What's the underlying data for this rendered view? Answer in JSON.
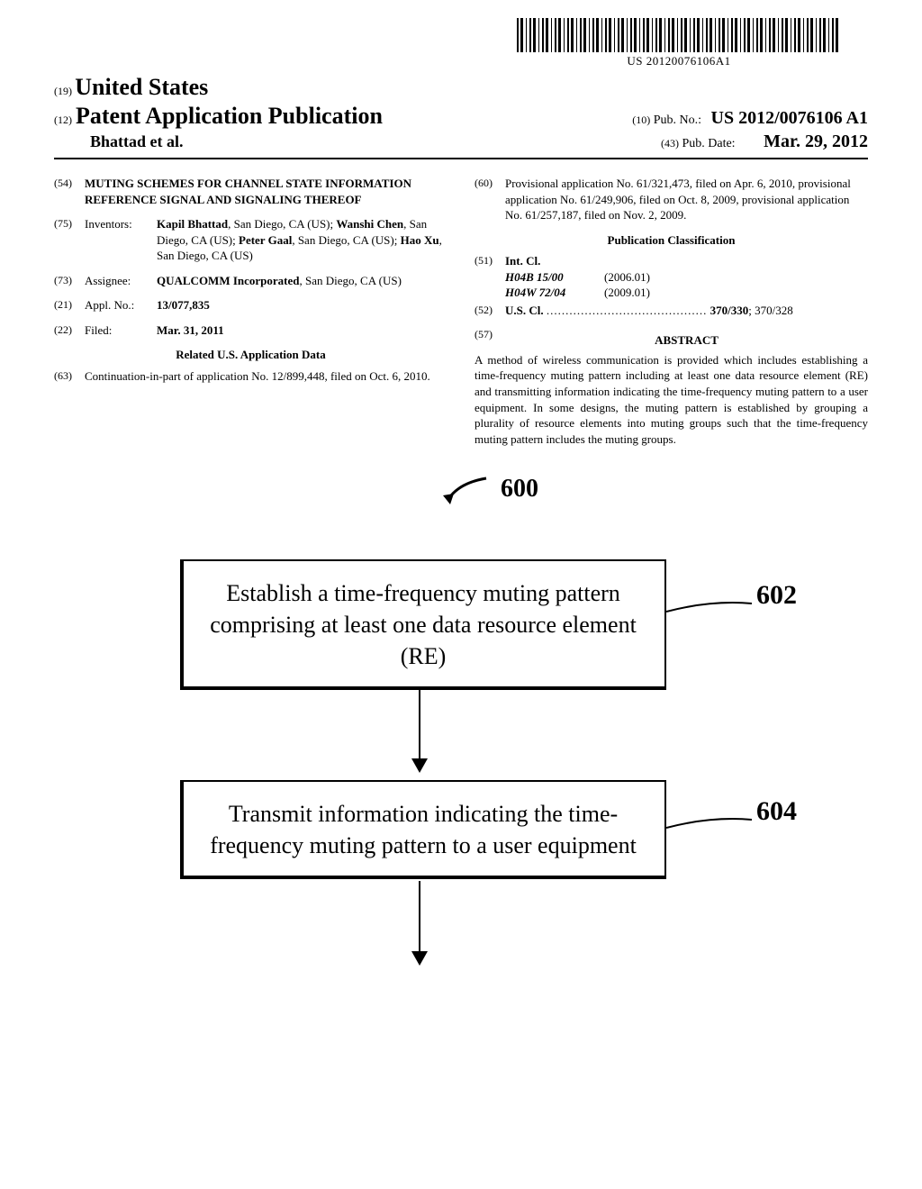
{
  "barcode_text": "US 20120076106A1",
  "header": {
    "country_code": "(19)",
    "country": "United States",
    "doc_type_code": "(12)",
    "doc_type": "Patent Application Publication",
    "authors": "Bhattad et al.",
    "pubno_code": "(10)",
    "pubno_label": "Pub. No.:",
    "pubno": "US 2012/0076106 A1",
    "pubdate_code": "(43)",
    "pubdate_label": "Pub. Date:",
    "pubdate": "Mar. 29, 2012"
  },
  "left": {
    "title_code": "(54)",
    "title": "MUTING SCHEMES FOR CHANNEL STATE INFORMATION REFERENCE SIGNAL AND SIGNALING THEREOF",
    "inventors_code": "(75)",
    "inventors_label": "Inventors:",
    "inventors_html": "<b>Kapil Bhattad</b>, San Diego, CA (US); <b>Wanshi Chen</b>, San Diego, CA (US); <b>Peter Gaal</b>, San Diego, CA (US); <b>Hao Xu</b>, San Diego, CA (US)",
    "assignee_code": "(73)",
    "assignee_label": "Assignee:",
    "assignee_html": "<b>QUALCOMM Incorporated</b>, San Diego, CA (US)",
    "applno_code": "(21)",
    "applno_label": "Appl. No.:",
    "applno": "13/077,835",
    "filed_code": "(22)",
    "filed_label": "Filed:",
    "filed": "Mar. 31, 2011",
    "related_heading": "Related U.S. Application Data",
    "cont_code": "(63)",
    "cont_text": "Continuation-in-part of application No. 12/899,448, filed on Oct. 6, 2010."
  },
  "right": {
    "prov_code": "(60)",
    "prov_text": "Provisional application No. 61/321,473, filed on Apr. 6, 2010, provisional application No. 61/249,906, filed on Oct. 8, 2009, provisional application No. 61/257,187, filed on Nov. 2, 2009.",
    "pubclass_heading": "Publication Classification",
    "intcl_code": "(51)",
    "intcl_label": "Int. Cl.",
    "intcl": [
      {
        "code": "H04B 15/00",
        "date": "(2006.01)"
      },
      {
        "code": "H04W 72/04",
        "date": "(2009.01)"
      }
    ],
    "uscl_code": "(52)",
    "uscl_label": "U.S. Cl.",
    "uscl_value_bold": "370/330",
    "uscl_value_rest": "; 370/328",
    "abstract_code": "(57)",
    "abstract_heading": "ABSTRACT",
    "abstract_text": "A method of wireless communication is provided which includes establishing a time-frequency muting pattern including at least one data resource element (RE) and transmitting information indicating the time-frequency muting pattern to a user equipment. In some designs, the muting pattern is established by grouping a plurality of resource elements into muting groups such that the time-frequency muting pattern includes the muting groups."
  },
  "figure": {
    "label": "600",
    "box1": {
      "text": "Establish a time-frequency muting pattern comprising at least one data resource element (RE)",
      "callout": "602"
    },
    "box2": {
      "text": "Transmit information indicating the time-frequency muting pattern to a user equipment",
      "callout": "604"
    }
  }
}
